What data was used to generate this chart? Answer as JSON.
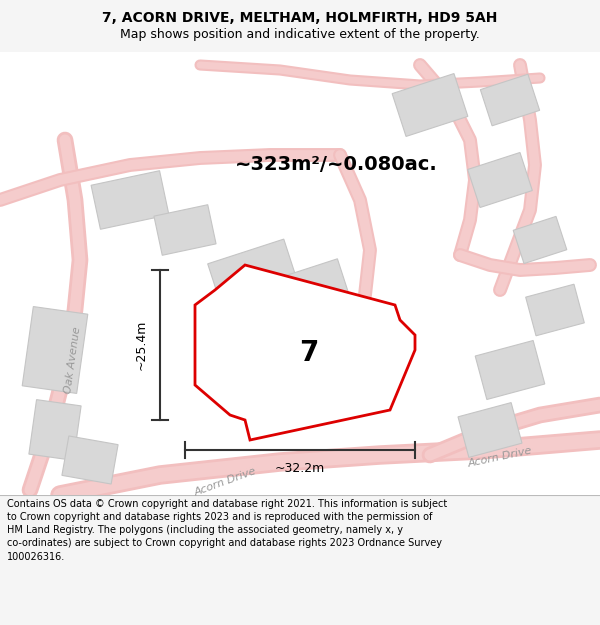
{
  "title_line1": "7, ACORN DRIVE, MELTHAM, HOLMFIRTH, HD9 5AH",
  "title_line2": "Map shows position and indicative extent of the property.",
  "area_text": "~323m²/~0.080ac.",
  "label_7": "7",
  "dim_width": "~32.2m",
  "dim_height": "~25.4m",
  "footer_text": "Contains OS data © Crown copyright and database right 2021. This information is subject to Crown copyright and database rights 2023 and is reproduced with the permission of HM Land Registry. The polygons (including the associated geometry, namely x, y co-ordinates) are subject to Crown copyright and database rights 2023 Ordnance Survey 100026316.",
  "bg_color": "#f5f5f5",
  "map_bg": "#ffffff",
  "footer_bg": "#ffffff",
  "road_color": "#f2bfbf",
  "road_fill": "#f8e0e0",
  "building_color": "#d8d8d8",
  "building_edge": "#c5c5c5",
  "red_outline": "#dd0000",
  "street_label_color": "#999999",
  "dim_line_color": "#333333",
  "title_fontsize": 10,
  "subtitle_fontsize": 9,
  "area_fontsize": 14,
  "label_fontsize": 20,
  "dim_fontsize": 9,
  "street_fontsize": 8,
  "footer_fontsize": 7
}
